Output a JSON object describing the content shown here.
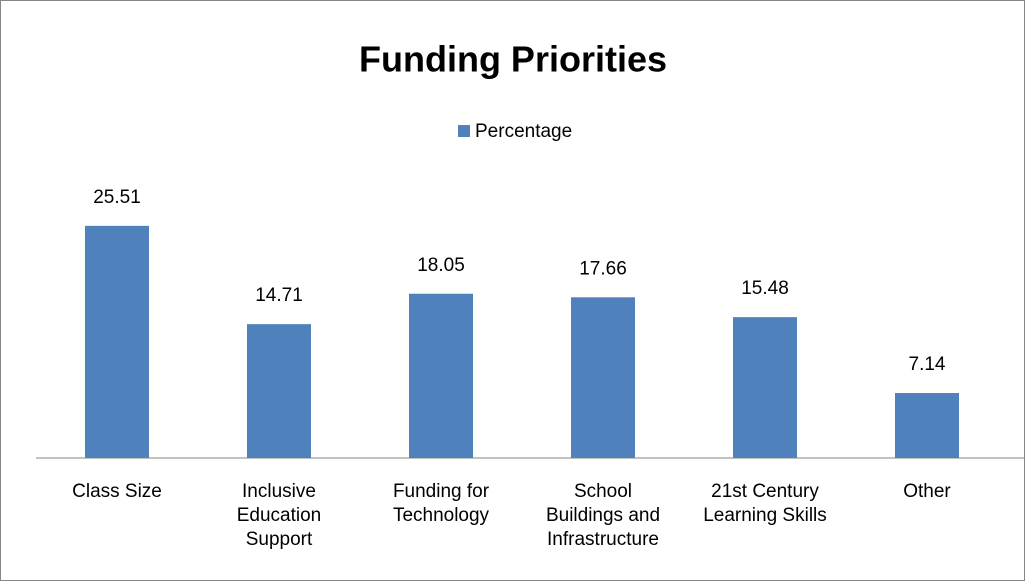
{
  "chart_data": {
    "type": "bar",
    "title": "Funding Priorities",
    "categories": [
      "Class Size",
      "Inclusive Education Support",
      "Funding for Technology",
      "School Buildings and Infrastructure",
      "21st Century Learning Skills",
      "Other"
    ],
    "series": [
      {
        "name": "Percentage",
        "color": "#4f81bd",
        "values": [
          25.51,
          14.71,
          18.05,
          17.66,
          15.48,
          7.14
        ]
      }
    ],
    "ylim": [
      0,
      30
    ],
    "legend": "top"
  }
}
